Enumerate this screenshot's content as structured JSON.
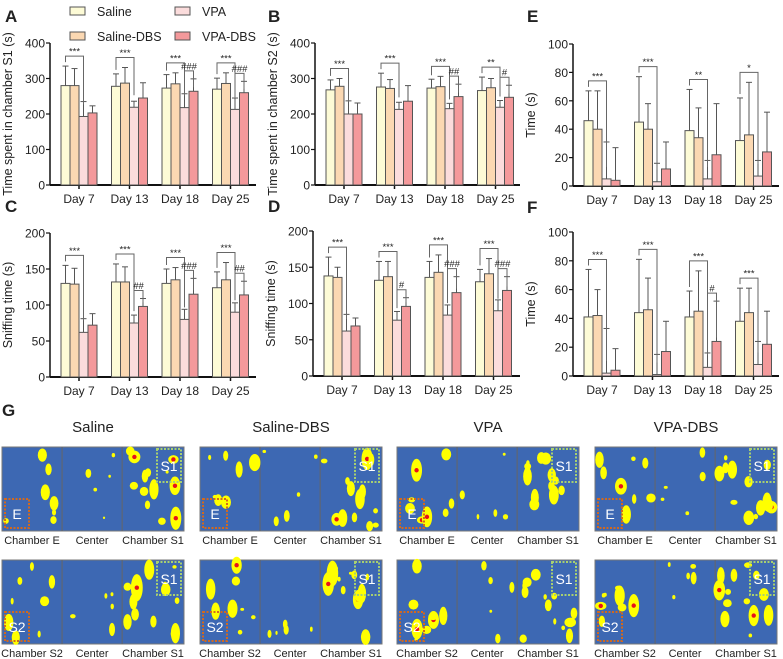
{
  "legend": [
    {
      "name": "Saline",
      "color": "#fdfbd6"
    },
    {
      "name": "Saline-DBS",
      "color": "#fbd8b2"
    },
    {
      "name": "VPA",
      "color": "#fbdcdc"
    },
    {
      "name": "VPA-DBS",
      "color": "#f4999b"
    }
  ],
  "chart_data": [
    {
      "panel": "A",
      "type": "bar",
      "ylabel": "Time spent in chamber S1 (s)",
      "ylim": [
        0,
        400
      ],
      "yticks": [
        0,
        100,
        200,
        300,
        400
      ],
      "categories": [
        "Day 7",
        "Day 13",
        "Day 18",
        "Day 25"
      ],
      "series": [
        {
          "name": "Saline",
          "values": [
            280,
            278,
            273,
            270
          ],
          "err_upper": [
            335,
            313,
            311,
            301
          ]
        },
        {
          "name": "Saline-DBS",
          "values": [
            280,
            287,
            285,
            286
          ],
          "err_upper": [
            328,
            331,
            316,
            316
          ]
        },
        {
          "name": "VPA",
          "values": [
            193,
            219,
            218,
            213
          ],
          "err_upper": [
            235,
            236,
            257,
            245
          ]
        },
        {
          "name": "VPA-DBS",
          "values": [
            203,
            245,
            264,
            260
          ],
          "err_upper": [
            223,
            288,
            299,
            292
          ]
        }
      ],
      "significance": [
        {
          "day": 0,
          "from": "Saline",
          "to": "VPA",
          "label": "***"
        },
        {
          "day": 1,
          "from": "Saline",
          "to": "VPA",
          "label": "***"
        },
        {
          "day": 2,
          "from": "Saline",
          "to": "VPA",
          "label": "***"
        },
        {
          "day": 3,
          "from": "Saline",
          "to": "VPA",
          "label": "***"
        },
        {
          "day": 2,
          "from": "VPA",
          "to": "VPA-DBS",
          "label": "###"
        },
        {
          "day": 3,
          "from": "VPA",
          "to": "VPA-DBS",
          "label": "###"
        }
      ]
    },
    {
      "panel": "B",
      "type": "bar",
      "ylabel": "Time spent in chamber S2 (s)",
      "ylim": [
        0,
        400
      ],
      "yticks": [
        0,
        100,
        200,
        300,
        400
      ],
      "categories": [
        "Day 7",
        "Day 13",
        "Day 18",
        "Day 25"
      ],
      "series": [
        {
          "name": "Saline",
          "values": [
            268,
            276,
            273,
            266
          ],
          "err_upper": [
            296,
            315,
            298,
            304
          ]
        },
        {
          "name": "Saline-DBS",
          "values": [
            278,
            272,
            277,
            274
          ],
          "err_upper": [
            300,
            297,
            306,
            300
          ]
        },
        {
          "name": "VPA",
          "values": [
            200,
            213,
            215,
            219
          ],
          "err_upper": [
            237,
            233,
            230,
            238
          ]
        },
        {
          "name": "VPA-DBS",
          "values": [
            200,
            236,
            249,
            247
          ],
          "err_upper": [
            231,
            280,
            284,
            281
          ]
        }
      ],
      "significance": [
        {
          "day": 0,
          "from": "Saline",
          "to": "VPA",
          "label": "***"
        },
        {
          "day": 1,
          "from": "Saline",
          "to": "VPA",
          "label": "***"
        },
        {
          "day": 2,
          "from": "Saline",
          "to": "VPA",
          "label": "***"
        },
        {
          "day": 3,
          "from": "Saline",
          "to": "VPA",
          "label": "**"
        },
        {
          "day": 2,
          "from": "VPA",
          "to": "VPA-DBS",
          "label": "##"
        },
        {
          "day": 3,
          "from": "VPA",
          "to": "VPA-DBS",
          "label": "#"
        }
      ]
    },
    {
      "panel": "C",
      "type": "bar",
      "ylabel": "Sniffing time (s)",
      "ylim": [
        0,
        200
      ],
      "yticks": [
        0,
        50,
        100,
        150,
        200
      ],
      "categories": [
        "Day 7",
        "Day 13",
        "Day 18",
        "Day 25"
      ],
      "series": [
        {
          "name": "Saline",
          "values": [
            130,
            132,
            130,
            124
          ],
          "err_upper": [
            155,
            157,
            150,
            146
          ]
        },
        {
          "name": "Saline-DBS",
          "values": [
            129,
            132,
            135,
            135
          ],
          "err_upper": [
            151,
            153,
            152,
            159
          ]
        },
        {
          "name": "VPA",
          "values": [
            62,
            75,
            80,
            90
          ],
          "err_upper": [
            81,
            86,
            94,
            103
          ]
        },
        {
          "name": "VPA-DBS",
          "values": [
            72,
            98,
            115,
            114
          ],
          "err_upper": [
            88,
            109,
            137,
            133
          ]
        }
      ],
      "significance": [
        {
          "day": 0,
          "from": "Saline",
          "to": "VPA",
          "label": "***"
        },
        {
          "day": 1,
          "from": "Saline",
          "to": "VPA",
          "label": "***"
        },
        {
          "day": 2,
          "from": "Saline",
          "to": "VPA",
          "label": "***"
        },
        {
          "day": 3,
          "from": "Saline",
          "to": "VPA",
          "label": "***"
        },
        {
          "day": 1,
          "from": "VPA",
          "to": "VPA-DBS",
          "label": "##"
        },
        {
          "day": 2,
          "from": "VPA",
          "to": "VPA-DBS",
          "label": "###"
        },
        {
          "day": 3,
          "from": "VPA",
          "to": "VPA-DBS",
          "label": "##"
        }
      ]
    },
    {
      "panel": "D",
      "type": "bar",
      "ylabel": "Sniffing time (s)",
      "ylim": [
        0,
        200
      ],
      "yticks": [
        0,
        50,
        100,
        150,
        200
      ],
      "categories": [
        "Day 7",
        "Day 13",
        "Day 18",
        "Day 25"
      ],
      "series": [
        {
          "name": "Saline",
          "values": [
            138,
            132,
            136,
            130
          ],
          "err_upper": [
            164,
            158,
            158,
            147
          ]
        },
        {
          "name": "Saline-DBS",
          "values": [
            136,
            137,
            143,
            141
          ],
          "err_upper": [
            150,
            158,
            167,
            162
          ]
        },
        {
          "name": "VPA",
          "values": [
            62,
            77,
            84,
            90
          ],
          "err_upper": [
            85,
            89,
            98,
            105
          ]
        },
        {
          "name": "VPA-DBS",
          "values": [
            69,
            96,
            115,
            118
          ],
          "err_upper": [
            80,
            108,
            137,
            137
          ]
        }
      ],
      "significance": [
        {
          "day": 0,
          "from": "Saline",
          "to": "VPA",
          "label": "***"
        },
        {
          "day": 1,
          "from": "Saline",
          "to": "VPA",
          "label": "***"
        },
        {
          "day": 2,
          "from": "Saline",
          "to": "VPA",
          "label": "***"
        },
        {
          "day": 3,
          "from": "Saline",
          "to": "VPA",
          "label": "***"
        },
        {
          "day": 1,
          "from": "VPA",
          "to": "VPA-DBS",
          "label": "#"
        },
        {
          "day": 2,
          "from": "VPA",
          "to": "VPA-DBS",
          "label": "###"
        },
        {
          "day": 3,
          "from": "VPA",
          "to": "VPA-DBS",
          "label": "###"
        }
      ]
    },
    {
      "panel": "E",
      "type": "bar",
      "ylabel": "Time (s)",
      "ylim": [
        0,
        100
      ],
      "yticks": [
        0,
        20,
        40,
        60,
        80,
        100
      ],
      "categories": [
        "Day 7",
        "Day 13",
        "Day 18",
        "Day 25"
      ],
      "series": [
        {
          "name": "Saline",
          "values": [
            46,
            45,
            39,
            32
          ],
          "err_upper": [
            67,
            77,
            68,
            62
          ]
        },
        {
          "name": "Saline-DBS",
          "values": [
            40,
            40,
            34,
            36
          ],
          "err_upper": [
            67,
            58,
            55,
            73
          ]
        },
        {
          "name": "VPA",
          "values": [
            5,
            3,
            5,
            7
          ],
          "err_upper": [
            31,
            16,
            18,
            18
          ]
        },
        {
          "name": "VPA-DBS",
          "values": [
            4,
            12,
            22,
            24
          ],
          "err_upper": [
            27,
            31,
            58,
            52
          ]
        }
      ],
      "significance": [
        {
          "day": 0,
          "from": "Saline",
          "to": "VPA",
          "label": "***"
        },
        {
          "day": 1,
          "from": "Saline",
          "to": "VPA",
          "label": "***"
        },
        {
          "day": 2,
          "from": "Saline",
          "to": "VPA",
          "label": "**"
        },
        {
          "day": 3,
          "from": "Saline",
          "to": "VPA",
          "label": "*"
        }
      ]
    },
    {
      "panel": "F",
      "type": "bar",
      "ylabel": "Time (s)",
      "ylim": [
        0,
        100
      ],
      "yticks": [
        0,
        20,
        40,
        60,
        80,
        100
      ],
      "categories": [
        "Day 7",
        "Day 13",
        "Day 18",
        "Day 25"
      ],
      "series": [
        {
          "name": "Saline",
          "values": [
            41,
            44,
            41,
            38
          ],
          "err_upper": [
            74,
            81,
            59,
            61
          ]
        },
        {
          "name": "Saline-DBS",
          "values": [
            42,
            46,
            45,
            44
          ],
          "err_upper": [
            60,
            68,
            73,
            61
          ]
        },
        {
          "name": "VPA",
          "values": [
            2,
            1,
            6,
            8
          ],
          "err_upper": [
            33,
            15,
            16,
            24
          ]
        },
        {
          "name": "VPA-DBS",
          "values": [
            4,
            17,
            24,
            22
          ],
          "err_upper": [
            19,
            38,
            52,
            45
          ]
        }
      ],
      "significance": [
        {
          "day": 0,
          "from": "Saline",
          "to": "VPA",
          "label": "***"
        },
        {
          "day": 1,
          "from": "Saline",
          "to": "VPA",
          "label": "***"
        },
        {
          "day": 2,
          "from": "Saline",
          "to": "VPA",
          "label": "***"
        },
        {
          "day": 3,
          "from": "Saline",
          "to": "VPA",
          "label": "***"
        },
        {
          "day": 2,
          "from": "VPA",
          "to": "VPA-DBS",
          "label": "#"
        }
      ]
    }
  ],
  "heatmaps": {
    "panel": "G",
    "groups": [
      "Saline",
      "Saline-DBS",
      "VPA",
      "VPA-DBS"
    ],
    "rows": [
      {
        "zones": [
          "Chamber E",
          "Center",
          "Chamber S1"
        ],
        "boxes": [
          "E",
          "S1"
        ]
      },
      {
        "zones": [
          "Chamber S2",
          "Center",
          "Chamber S1"
        ],
        "boxes": [
          "S2",
          "S1"
        ]
      }
    ],
    "colors": {
      "background": "#3d68b3",
      "hot": "#ffff00",
      "peak": "#e8101a",
      "left_box": "#d2691e",
      "s1_box": "#a8d070"
    }
  }
}
